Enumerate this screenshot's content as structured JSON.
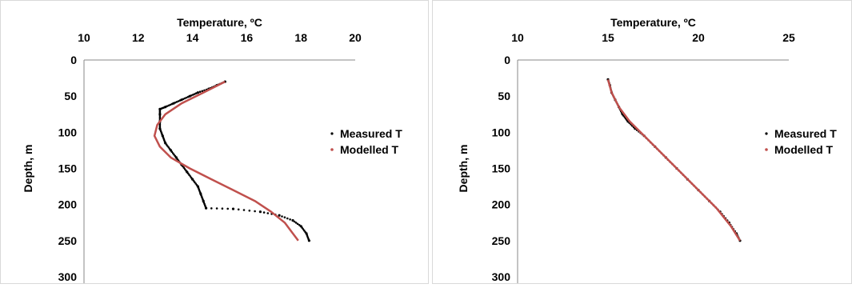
{
  "chart_data": [
    {
      "type": "scatter",
      "title": "",
      "xlabel": "Temperature, ºC",
      "ylabel": "Depth, m",
      "xlim": [
        10,
        20
      ],
      "ylim": [
        0,
        300
      ],
      "x_ticks": [
        "10",
        "12",
        "14",
        "16",
        "18",
        "20"
      ],
      "y_ticks": [
        "0",
        "50",
        "100",
        "150",
        "200",
        "250",
        "300"
      ],
      "y_inverted": true,
      "x_axis_position": "top",
      "legend_position": "right",
      "grid": false,
      "series": [
        {
          "name": "Measured T",
          "style": "markers",
          "color": "#000000",
          "points": [
            [
              15.2,
              30
            ],
            [
              14.9,
              35
            ],
            [
              14.6,
              40
            ],
            [
              14.2,
              45
            ],
            [
              13.9,
              50
            ],
            [
              13.6,
              55
            ],
            [
              13.3,
              60
            ],
            [
              13.0,
              65
            ],
            [
              12.8,
              68
            ],
            [
              12.8,
              75
            ],
            [
              12.8,
              85
            ],
            [
              12.8,
              95
            ],
            [
              12.9,
              105
            ],
            [
              13.0,
              115
            ],
            [
              13.2,
              125
            ],
            [
              13.4,
              135
            ],
            [
              13.6,
              145
            ],
            [
              13.8,
              155
            ],
            [
              14.0,
              165
            ],
            [
              14.2,
              175
            ],
            [
              14.3,
              185
            ],
            [
              14.4,
              195
            ],
            [
              14.5,
              205
            ],
            [
              15.5,
              206
            ],
            [
              16.5,
              210
            ],
            [
              17.2,
              215
            ],
            [
              17.7,
              222
            ],
            [
              18.0,
              230
            ],
            [
              18.2,
              240
            ],
            [
              18.3,
              250
            ]
          ]
        },
        {
          "name": "Modelled T",
          "style": "line",
          "color": "#c0504d",
          "points": [
            [
              15.2,
              30
            ],
            [
              14.4,
              45
            ],
            [
              13.6,
              60
            ],
            [
              13.0,
              75
            ],
            [
              12.7,
              90
            ],
            [
              12.6,
              105
            ],
            [
              12.8,
              120
            ],
            [
              13.2,
              135
            ],
            [
              13.9,
              150
            ],
            [
              14.7,
              165
            ],
            [
              15.5,
              180
            ],
            [
              16.3,
              195
            ],
            [
              16.9,
              210
            ],
            [
              17.4,
              225
            ],
            [
              17.7,
              240
            ],
            [
              17.9,
              250
            ]
          ]
        }
      ]
    },
    {
      "type": "scatter",
      "title": "",
      "xlabel": "Temperature, ºC",
      "ylabel": "Depth, m",
      "xlim": [
        10,
        25
      ],
      "ylim": [
        0,
        300
      ],
      "x_ticks": [
        "10",
        "15",
        "20",
        "25"
      ],
      "y_ticks": [
        "0",
        "50",
        "100",
        "150",
        "200",
        "250",
        "300"
      ],
      "y_inverted": true,
      "x_axis_position": "top",
      "legend_position": "right",
      "grid": false,
      "series": [
        {
          "name": "Measured T",
          "style": "markers",
          "color": "#000000",
          "points": [
            [
              15.0,
              27
            ],
            [
              15.1,
              35
            ],
            [
              15.2,
              45
            ],
            [
              15.4,
              55
            ],
            [
              15.6,
              65
            ],
            [
              15.8,
              75
            ],
            [
              16.1,
              85
            ],
            [
              16.5,
              95
            ],
            [
              17.0,
              105
            ],
            [
              17.6,
              120
            ],
            [
              18.2,
              135
            ],
            [
              18.8,
              150
            ],
            [
              19.4,
              165
            ],
            [
              20.0,
              180
            ],
            [
              20.6,
              195
            ],
            [
              21.2,
              210
            ],
            [
              21.7,
              225
            ],
            [
              22.1,
              240
            ],
            [
              22.3,
              250
            ]
          ]
        },
        {
          "name": "Modelled T",
          "style": "line",
          "color": "#c0504d",
          "points": [
            [
              15.0,
              27
            ],
            [
              15.2,
              45
            ],
            [
              15.6,
              65
            ],
            [
              16.2,
              85
            ],
            [
              17.0,
              105
            ],
            [
              18.0,
              130
            ],
            [
              19.0,
              155
            ],
            [
              20.0,
              180
            ],
            [
              21.0,
              205
            ],
            [
              21.8,
              230
            ],
            [
              22.3,
              250
            ]
          ]
        }
      ]
    }
  ]
}
